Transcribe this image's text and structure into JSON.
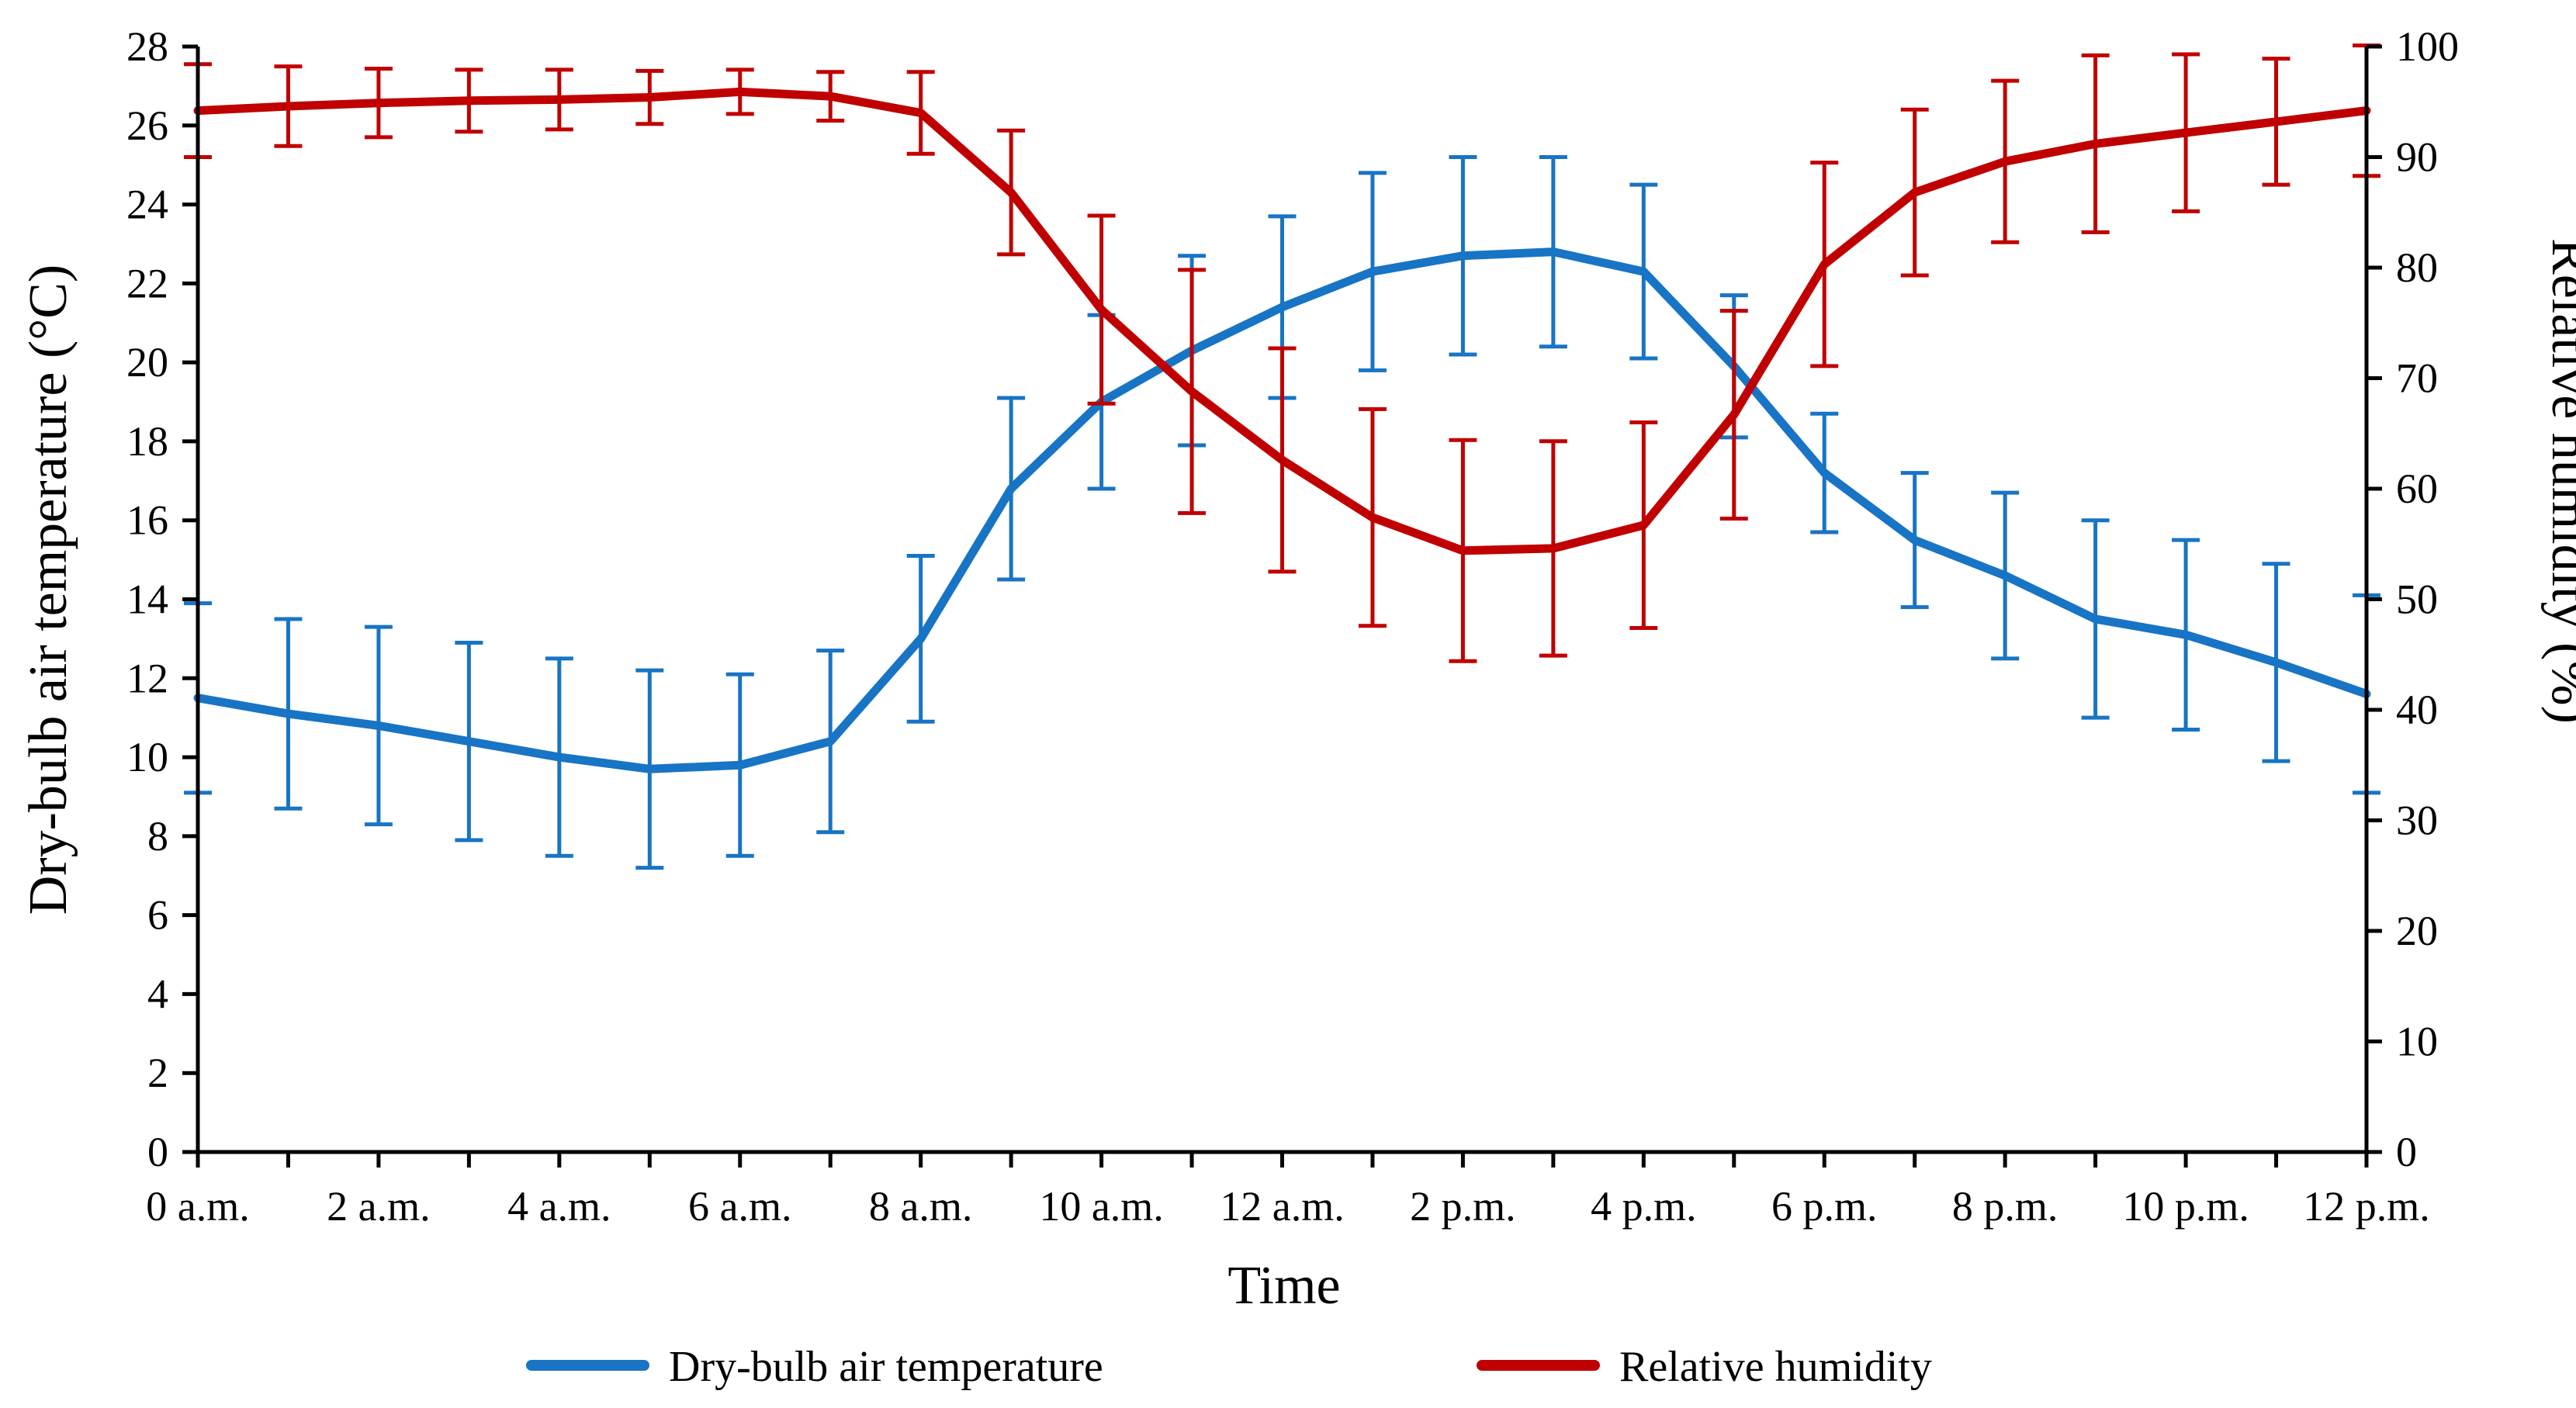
{
  "chart_data": {
    "type": "line",
    "title": "",
    "xlabel": "Time",
    "ylabel_left": "Dry-bulb air temperature (°C)",
    "ylabel_right": "Relative humidity (%)",
    "x": [
      0,
      1,
      2,
      3,
      4,
      5,
      6,
      7,
      8,
      9,
      10,
      11,
      12,
      13,
      14,
      15,
      16,
      17,
      18,
      19,
      20,
      21,
      22,
      23,
      24
    ],
    "x_tick_values": [
      0,
      2,
      4,
      6,
      8,
      10,
      12,
      14,
      16,
      18,
      20,
      22,
      24
    ],
    "x_tick_labels": [
      "0 a.m.",
      "2 a.m.",
      "4 a.m.",
      "6 a.m.",
      "8 a.m.",
      "10 a.m.",
      "12 a.m.",
      "2 p.m.",
      "4 p.m.",
      "6 p.m.",
      "8 p.m.",
      "10 p.m.",
      "12 p.m."
    ],
    "xlim": [
      0,
      24
    ],
    "ylim_left": [
      0,
      28
    ],
    "yticks_left": [
      0,
      2,
      4,
      6,
      8,
      10,
      12,
      14,
      16,
      18,
      20,
      22,
      24,
      26,
      28
    ],
    "ylim_right": [
      0,
      100
    ],
    "yticks_right": [
      0,
      10,
      20,
      30,
      40,
      50,
      60,
      70,
      80,
      90,
      100
    ],
    "grid": false,
    "legend_position": "bottom",
    "series": [
      {
        "name": "Dry-bulb air temperature",
        "axis": "left",
        "color": "#1874C4",
        "values": [
          11.5,
          11.1,
          10.8,
          10.4,
          10.0,
          9.7,
          9.8,
          10.4,
          13.0,
          16.8,
          19.0,
          20.3,
          21.4,
          22.3,
          22.7,
          22.8,
          22.3,
          19.9,
          17.2,
          15.5,
          14.6,
          13.5,
          13.1,
          12.4,
          11.6
        ],
        "errors": [
          2.4,
          2.4,
          2.5,
          2.5,
          2.5,
          2.5,
          2.3,
          2.3,
          2.1,
          2.3,
          2.2,
          2.4,
          2.3,
          2.5,
          2.5,
          2.4,
          2.2,
          1.8,
          1.5,
          1.7,
          2.1,
          2.5,
          2.4,
          2.5,
          2.5
        ]
      },
      {
        "name": "Relative humidity",
        "axis": "right",
        "color": "#C00000",
        "values": [
          94.2,
          94.6,
          94.9,
          95.1,
          95.2,
          95.4,
          95.9,
          95.5,
          94.0,
          86.8,
          76.2,
          68.8,
          62.6,
          57.4,
          54.4,
          54.6,
          56.7,
          66.7,
          80.3,
          86.8,
          89.6,
          91.2,
          92.2,
          93.2,
          94.2
        ],
        "errors": [
          4.2,
          3.6,
          3.1,
          2.8,
          2.7,
          2.4,
          2.0,
          2.2,
          3.7,
          5.6,
          8.5,
          11.0,
          10.1,
          9.8,
          10.0,
          9.7,
          9.3,
          9.4,
          9.2,
          7.5,
          7.3,
          8.0,
          7.1,
          5.7,
          5.9
        ]
      }
    ]
  }
}
